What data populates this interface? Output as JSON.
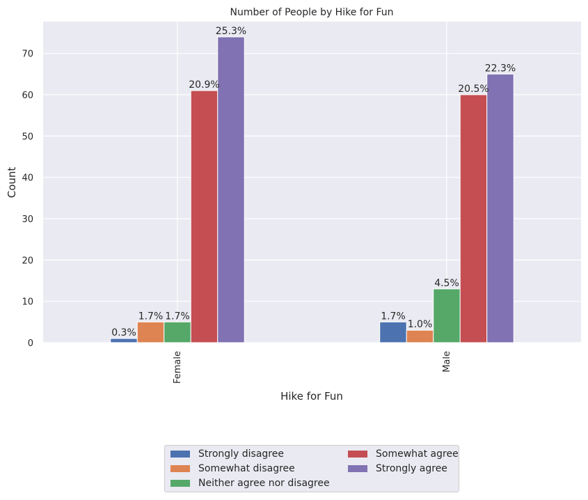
{
  "chart_data": {
    "type": "bar",
    "title": "Number of People by Hike for Fun",
    "xlabel": "Hike for Fun",
    "ylabel": "Count",
    "categories": [
      "Female",
      "Male"
    ],
    "ylim": [
      0,
      77.7
    ],
    "yticks": [
      0,
      10,
      20,
      30,
      40,
      50,
      60,
      70
    ],
    "grid": true,
    "legend_position": "bottom-center",
    "series": [
      {
        "name": "Strongly disagree",
        "color": "#4c72b0",
        "values": [
          1,
          5
        ],
        "labels": [
          "0.3%",
          "1.7%"
        ]
      },
      {
        "name": "Somewhat disagree",
        "color": "#dd8452",
        "values": [
          5,
          3
        ],
        "labels": [
          "1.7%",
          "1.0%"
        ]
      },
      {
        "name": "Neither agree nor disagree",
        "color": "#55a868",
        "values": [
          5,
          13
        ],
        "labels": [
          "1.7%",
          "4.5%"
        ]
      },
      {
        "name": "Somewhat agree",
        "color": "#c44e52",
        "values": [
          61,
          60
        ],
        "labels": [
          "20.9%",
          "20.5%"
        ]
      },
      {
        "name": "Strongly agree",
        "color": "#8172b3",
        "values": [
          74,
          65
        ],
        "labels": [
          "25.3%",
          "22.3%"
        ]
      }
    ]
  }
}
